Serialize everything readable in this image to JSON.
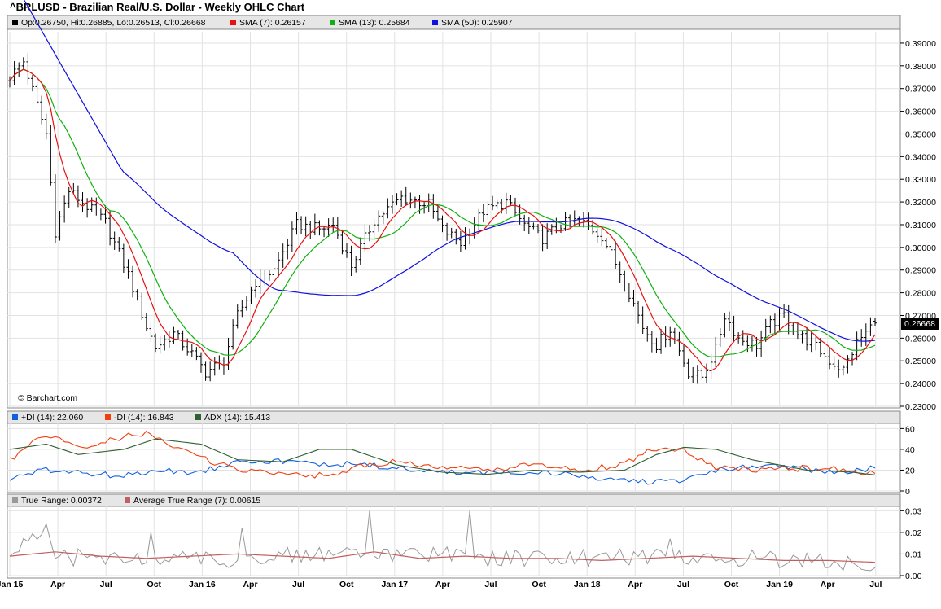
{
  "title": "^BRLUSD - Brazilian Real/U.S. Dollar - Weekly OHLC Chart",
  "copyright": "© Barchart.com",
  "last_price_label": "0.26668",
  "colors": {
    "price": "#000000",
    "sma7": "#e81010",
    "sma13": "#10b010",
    "sma50": "#1010e0",
    "plus_di": "#1060e0",
    "minus_di": "#f04010",
    "adx": "#306030",
    "tr": "#999999",
    "atr": "#c06060",
    "last_price_bg": "#000000"
  },
  "chart_data": [
    {
      "type": "ohlc",
      "title": "^BRLUSD - Brazilian Real/U.S. Dollar - Weekly OHLC Chart",
      "legend": [
        "Op:0.26750, Hi:0.26885, Lo:0.26513, Cl:0.26668",
        "SMA (7): 0.26157",
        "SMA (13): 0.25684",
        "SMA (50): 0.25907"
      ],
      "x_tick_labels": [
        "Jan 15",
        "Apr",
        "Jul",
        "Oct",
        "Jan 16",
        "Apr",
        "Jul",
        "Oct",
        "Jan 17",
        "Apr",
        "Jul",
        "Oct",
        "Jan 18",
        "Apr",
        "Jul",
        "Oct",
        "Jan 19",
        "Apr",
        "Jul"
      ],
      "y_tick_labels": [
        "0.39000",
        "0.38000",
        "0.37000",
        "0.36000",
        "0.35000",
        "0.34000",
        "0.33000",
        "0.32000",
        "0.31000",
        "0.30000",
        "0.29000",
        "0.28000",
        "0.27000",
        "0.26000",
        "0.25000",
        "0.24000",
        "0.23000"
      ],
      "ylim": [
        0.23,
        0.395
      ],
      "last": {
        "open": 0.2675,
        "high": 0.26885,
        "low": 0.26513,
        "close": 0.26668
      },
      "close_anchors": [
        [
          0,
          0.375
        ],
        [
          3,
          0.382
        ],
        [
          8,
          0.35
        ],
        [
          10,
          0.307
        ],
        [
          13,
          0.325
        ],
        [
          17,
          0.318
        ],
        [
          21,
          0.311
        ],
        [
          26,
          0.288
        ],
        [
          30,
          0.265
        ],
        [
          32,
          0.256
        ],
        [
          36,
          0.262
        ],
        [
          40,
          0.253
        ],
        [
          43,
          0.245
        ],
        [
          47,
          0.25
        ],
        [
          50,
          0.27
        ],
        [
          54,
          0.285
        ],
        [
          58,
          0.29
        ],
        [
          63,
          0.31
        ],
        [
          68,
          0.308
        ],
        [
          71,
          0.31
        ],
        [
          75,
          0.292
        ],
        [
          80,
          0.312
        ],
        [
          86,
          0.322
        ],
        [
          92,
          0.319
        ],
        [
          95,
          0.308
        ],
        [
          99,
          0.302
        ],
        [
          104,
          0.316
        ],
        [
          109,
          0.32
        ],
        [
          113,
          0.31
        ],
        [
          117,
          0.304
        ],
        [
          121,
          0.31
        ],
        [
          125,
          0.312
        ],
        [
          130,
          0.305
        ],
        [
          135,
          0.285
        ],
        [
          139,
          0.265
        ],
        [
          142,
          0.257
        ],
        [
          145,
          0.264
        ],
        [
          149,
          0.245
        ],
        [
          152,
          0.243
        ],
        [
          155,
          0.255
        ],
        [
          157,
          0.27
        ],
        [
          160,
          0.26
        ],
        [
          164,
          0.257
        ],
        [
          167,
          0.266
        ],
        [
          170,
          0.27
        ],
        [
          173,
          0.262
        ],
        [
          177,
          0.256
        ],
        [
          180,
          0.25
        ],
        [
          183,
          0.246
        ],
        [
          186,
          0.258
        ],
        [
          190,
          0.267
        ]
      ],
      "sma_last": {
        "sma7": 0.26157,
        "sma13": 0.25684,
        "sma50": 0.25907
      }
    },
    {
      "type": "line",
      "legend": [
        "+DI (14): 22.060",
        "-DI (14): 16.843",
        "ADX (14): 15.413"
      ],
      "y_tick_labels": [
        "60",
        "40",
        "20",
        "0"
      ],
      "ylim": [
        0,
        65
      ],
      "series": [
        {
          "name": "+DI (14)",
          "anchors": [
            [
              0,
              12
            ],
            [
              8,
              20
            ],
            [
              15,
              18
            ],
            [
              25,
              14
            ],
            [
              32,
              20
            ],
            [
              42,
              18
            ],
            [
              50,
              30
            ],
            [
              60,
              28
            ],
            [
              70,
              26
            ],
            [
              78,
              25
            ],
            [
              85,
              22
            ],
            [
              95,
              18
            ],
            [
              105,
              17
            ],
            [
              115,
              19
            ],
            [
              125,
              14
            ],
            [
              135,
              10
            ],
            [
              145,
              8
            ],
            [
              155,
              20
            ],
            [
              165,
              24
            ],
            [
              175,
              21
            ],
            [
              185,
              18
            ],
            [
              190,
              22
            ]
          ]
        },
        {
          "name": "-DI (14)",
          "anchors": [
            [
              0,
              30
            ],
            [
              8,
              55
            ],
            [
              15,
              40
            ],
            [
              25,
              52
            ],
            [
              30,
              55
            ],
            [
              40,
              35
            ],
            [
              50,
              20
            ],
            [
              60,
              18
            ],
            [
              70,
              14
            ],
            [
              78,
              25
            ],
            [
              85,
              28
            ],
            [
              95,
              22
            ],
            [
              105,
              20
            ],
            [
              115,
              25
            ],
            [
              125,
              20
            ],
            [
              135,
              25
            ],
            [
              140,
              40
            ],
            [
              148,
              38
            ],
            [
              155,
              22
            ],
            [
              165,
              20
            ],
            [
              175,
              22
            ],
            [
              185,
              20
            ],
            [
              190,
              16.8
            ]
          ]
        },
        {
          "name": "ADX (14)",
          "anchors": [
            [
              0,
              40
            ],
            [
              8,
              45
            ],
            [
              15,
              35
            ],
            [
              25,
              40
            ],
            [
              32,
              50
            ],
            [
              42,
              45
            ],
            [
              50,
              30
            ],
            [
              60,
              28
            ],
            [
              68,
              40
            ],
            [
              75,
              40
            ],
            [
              85,
              25
            ],
            [
              95,
              18
            ],
            [
              105,
              16
            ],
            [
              115,
              20
            ],
            [
              125,
              18
            ],
            [
              135,
              20
            ],
            [
              142,
              35
            ],
            [
              148,
              42
            ],
            [
              155,
              40
            ],
            [
              163,
              30
            ],
            [
              175,
              20
            ],
            [
              185,
              18
            ],
            [
              190,
              15.4
            ]
          ]
        }
      ]
    },
    {
      "type": "line",
      "legend": [
        "True Range: 0.00372",
        "Average True Range (7): 0.00615"
      ],
      "y_tick_labels": [
        "0.03",
        "0.02",
        "0.01",
        "0.00"
      ],
      "ylim": [
        0,
        0.032
      ],
      "series": [
        {
          "name": "True Range",
          "anchors": [
            [
              0,
              0.009
            ],
            [
              7,
              0.019
            ],
            [
              8,
              0.024
            ],
            [
              10,
              0.008
            ],
            [
              20,
              0.009
            ],
            [
              30,
              0.006
            ],
            [
              31,
              0.02
            ],
            [
              32,
              0.008
            ],
            [
              50,
              0.007
            ],
            [
              51,
              0.022
            ],
            [
              52,
              0.009
            ],
            [
              78,
              0.01
            ],
            [
              79,
              0.03
            ],
            [
              80,
              0.009
            ],
            [
              100,
              0.01
            ],
            [
              101,
              0.03
            ],
            [
              102,
              0.008
            ],
            [
              120,
              0.008
            ],
            [
              144,
              0.009
            ],
            [
              145,
              0.017
            ],
            [
              146,
              0.008
            ],
            [
              165,
              0.008
            ],
            [
              185,
              0.006
            ],
            [
              190,
              0.0037
            ]
          ]
        },
        {
          "name": "Average True Range (7)",
          "anchors": [
            [
              0,
              0.009
            ],
            [
              10,
              0.011
            ],
            [
              20,
              0.009
            ],
            [
              30,
              0.008
            ],
            [
              40,
              0.009
            ],
            [
              50,
              0.01
            ],
            [
              60,
              0.009
            ],
            [
              70,
              0.008
            ],
            [
              80,
              0.011
            ],
            [
              90,
              0.008
            ],
            [
              100,
              0.009
            ],
            [
              110,
              0.008
            ],
            [
              120,
              0.008
            ],
            [
              130,
              0.007
            ],
            [
              140,
              0.008
            ],
            [
              150,
              0.009
            ],
            [
              160,
              0.008
            ],
            [
              170,
              0.007
            ],
            [
              180,
              0.007
            ],
            [
              190,
              0.00615
            ]
          ]
        }
      ]
    }
  ]
}
